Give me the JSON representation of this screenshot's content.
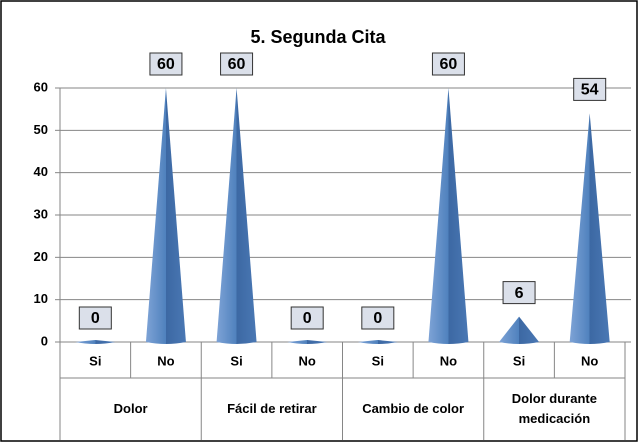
{
  "chart_data": {
    "type": "cone",
    "title": "5. Segunda Cita",
    "categories": [
      "Si",
      "No",
      "Si",
      "No",
      "Si",
      "No",
      "Si",
      "No"
    ],
    "groups": [
      "Dolor",
      "Fácil de retirar",
      "Cambio de color",
      "Dolor durante medicación"
    ],
    "values": [
      0,
      60,
      60,
      0,
      0,
      60,
      6,
      54
    ],
    "color": "#4f81bd",
    "ylim": [
      0,
      60
    ],
    "yticks": [
      0,
      10,
      20,
      30,
      40,
      50,
      60
    ],
    "grid": true
  }
}
